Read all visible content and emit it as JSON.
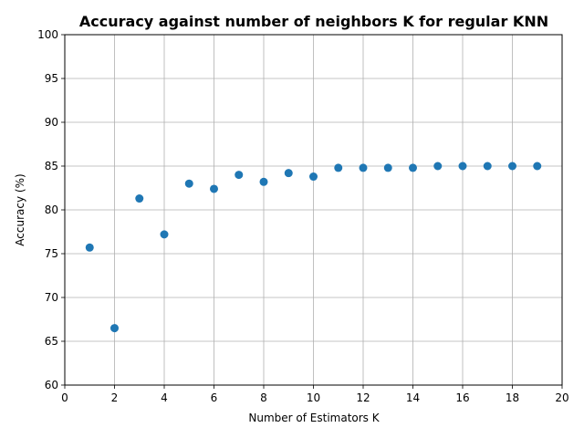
{
  "chart_data": {
    "type": "scatter",
    "title": "Accuracy against number of neighbors K for regular KNN",
    "xlabel": "Number of Estimators K",
    "ylabel": "Accuracy (%)",
    "xlim": [
      0,
      20
    ],
    "ylim": [
      60,
      100
    ],
    "xticks": [
      0,
      2,
      4,
      6,
      8,
      10,
      12,
      14,
      16,
      18,
      20
    ],
    "yticks": [
      60,
      65,
      70,
      75,
      80,
      85,
      90,
      95,
      100
    ],
    "grid": true,
    "point_color": "#1f77b4",
    "x": [
      1,
      2,
      3,
      4,
      5,
      6,
      7,
      8,
      9,
      10,
      11,
      12,
      13,
      14,
      15,
      16,
      17,
      18,
      19
    ],
    "y": [
      75.7,
      66.5,
      81.3,
      77.2,
      83.0,
      82.4,
      84.0,
      83.2,
      84.2,
      83.8,
      84.8,
      84.8,
      84.8,
      84.8,
      85.0,
      85.0,
      85.0,
      85.0,
      85.0
    ]
  }
}
